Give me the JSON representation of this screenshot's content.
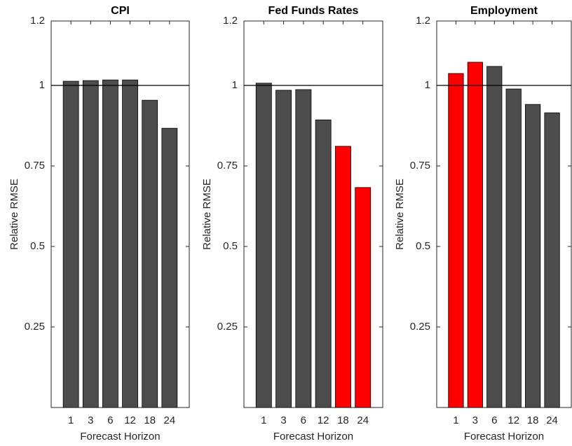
{
  "chart_data": [
    {
      "type": "bar",
      "title": "CPI",
      "x_label": "Forecast Horizon",
      "y_label": "Relative RMSE",
      "categories": [
        "1",
        "3",
        "6",
        "12",
        "18",
        "24"
      ],
      "values": [
        1.013,
        1.015,
        1.017,
        1.017,
        0.954,
        0.867
      ],
      "colors": [
        "#4d4d4d",
        "#4d4d4d",
        "#4d4d4d",
        "#4d4d4d",
        "#4d4d4d",
        "#4d4d4d"
      ],
      "ylim": [
        0,
        1.2
      ],
      "yticks": [
        0.25,
        0.5,
        0.75,
        1,
        1.2
      ],
      "reference_line": 1
    },
    {
      "type": "bar",
      "title": "Fed Funds Rates",
      "x_label": "Forecast Horizon",
      "y_label": "Relative RMSE",
      "categories": [
        "1",
        "3",
        "6",
        "12",
        "18",
        "24"
      ],
      "values": [
        1.007,
        0.985,
        0.987,
        0.893,
        0.811,
        0.683
      ],
      "colors": [
        "#4d4d4d",
        "#4d4d4d",
        "#4d4d4d",
        "#4d4d4d",
        "#ff0000",
        "#ff0000"
      ],
      "ylim": [
        0,
        1.2
      ],
      "yticks": [
        0.25,
        0.5,
        0.75,
        1,
        1.2
      ],
      "reference_line": 1
    },
    {
      "type": "bar",
      "title": "Employment",
      "x_label": "Forecast Horizon",
      "y_label": "Relative RMSE",
      "categories": [
        "1",
        "3",
        "6",
        "12",
        "18",
        "24"
      ],
      "values": [
        1.037,
        1.072,
        1.059,
        0.989,
        0.941,
        0.915
      ],
      "colors": [
        "#ff0000",
        "#ff0000",
        "#4d4d4d",
        "#4d4d4d",
        "#4d4d4d",
        "#4d4d4d"
      ],
      "ylim": [
        0,
        1.2
      ],
      "yticks": [
        0.25,
        0.5,
        0.75,
        1,
        1.2
      ],
      "reference_line": 1
    }
  ]
}
